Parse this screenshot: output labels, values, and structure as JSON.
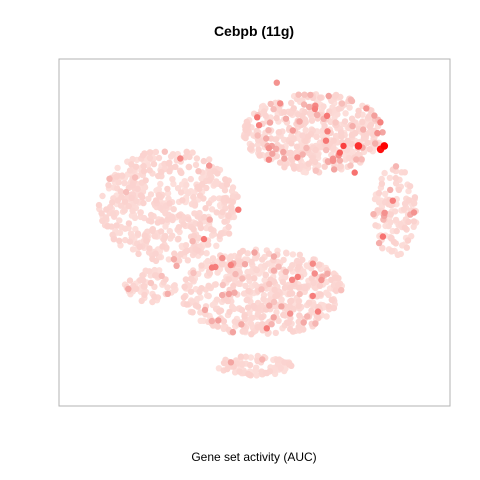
{
  "chart_data": {
    "type": "scatter",
    "title": "Cebpb (11g)",
    "xlabel": "Gene set activity (AUC)",
    "ylabel": "",
    "axes_visible": false,
    "grid": false,
    "legend": "none",
    "colors": {
      "low": "#fde0dc",
      "mid": "#f3a3a0",
      "high": "#ff0000",
      "frame": "#b3b3b3"
    },
    "clusters": [
      {
        "id": "upper-left",
        "cx": 0.27,
        "cy": 0.58,
        "rx": 0.19,
        "ry": 0.17,
        "n": 520,
        "hot": 0.03
      },
      {
        "id": "upper-right",
        "cx": 0.66,
        "cy": 0.8,
        "rx": 0.19,
        "ry": 0.12,
        "n": 520,
        "hot": 0.12
      },
      {
        "id": "right-arm",
        "cx": 0.88,
        "cy": 0.56,
        "rx": 0.06,
        "ry": 0.14,
        "n": 120,
        "hot": 0.12
      },
      {
        "id": "lower-blob",
        "cx": 0.52,
        "cy": 0.32,
        "rx": 0.22,
        "ry": 0.13,
        "n": 560,
        "hot": 0.08
      },
      {
        "id": "lower-left-bit",
        "cx": 0.22,
        "cy": 0.34,
        "rx": 0.07,
        "ry": 0.05,
        "n": 60,
        "hot": 0.05
      },
      {
        "id": "bottom-tail",
        "cx": 0.5,
        "cy": 0.1,
        "rx": 0.1,
        "ry": 0.03,
        "n": 80,
        "hot": 0.02
      }
    ],
    "hotspots": [
      {
        "x": 0.85,
        "y": 0.76,
        "auc": 1.0
      },
      {
        "x": 0.84,
        "y": 0.75,
        "auc": 0.95
      },
      {
        "x": 0.78,
        "y": 0.76,
        "auc": 0.85
      },
      {
        "x": 0.74,
        "y": 0.76,
        "auc": 0.8
      },
      {
        "x": 0.73,
        "y": 0.74,
        "auc": 0.7
      },
      {
        "x": 0.77,
        "y": 0.68,
        "auc": 0.65
      },
      {
        "x": 0.93,
        "y": 0.56,
        "auc": 0.55
      },
      {
        "x": 0.56,
        "y": 0.95,
        "auc": 0.55
      },
      {
        "x": 0.7,
        "y": 0.91,
        "auc": 0.5
      },
      {
        "x": 0.5,
        "y": 0.44,
        "auc": 0.5
      },
      {
        "x": 0.29,
        "y": 0.4,
        "auc": 0.45
      }
    ]
  }
}
